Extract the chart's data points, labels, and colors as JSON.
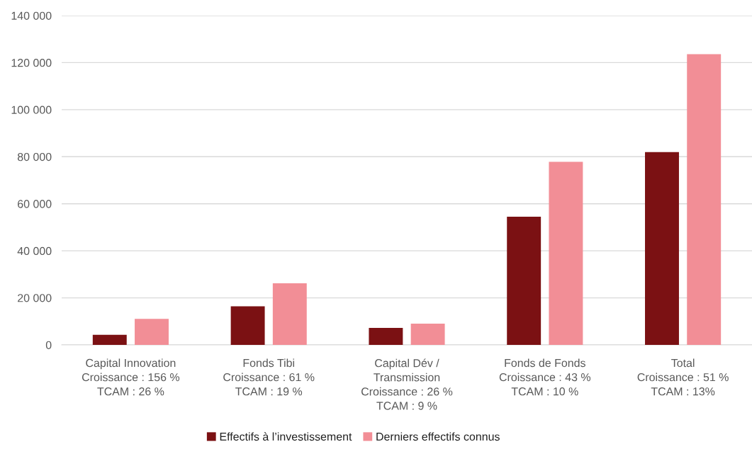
{
  "chart_data": {
    "type": "bar",
    "categories": [
      "Capital Innovation\nCroissance : 156 %\nTCAM : 26 %",
      "Fonds Tibi\nCroissance : 61 %\nTCAM : 19 %",
      "Capital Dév /\nTransmission\nCroissance : 26 %\nTCAM : 9 %",
      "Fonds de Fonds\nCroissance : 43 %\nTCAM : 10 %",
      "Total\nCroissance : 51 %\nTCAM : 13%"
    ],
    "series": [
      {
        "name": "Effectifs à l’investissement",
        "color": "#7b1113",
        "values": [
          4300,
          16400,
          7200,
          54500,
          82000
        ]
      },
      {
        "name": "Derniers effectifs connus",
        "color": "#f28e96",
        "values": [
          11100,
          26200,
          9000,
          77800,
          123600
        ]
      }
    ],
    "ylim": [
      0,
      140000
    ],
    "yticks": [
      0,
      {
        "value": 20000,
        "label": "20 000"
      },
      {
        "value": 40000,
        "label": "40 000"
      },
      {
        "value": 60000,
        "label": "60 000"
      },
      {
        "value": 80000,
        "label": "80 000"
      },
      {
        "value": 100000,
        "label": "100 000"
      },
      {
        "value": 120000,
        "label": "120 000"
      },
      {
        "value": 140000,
        "label": "140 000"
      }
    ],
    "grid": "y",
    "legend": "bottom"
  }
}
